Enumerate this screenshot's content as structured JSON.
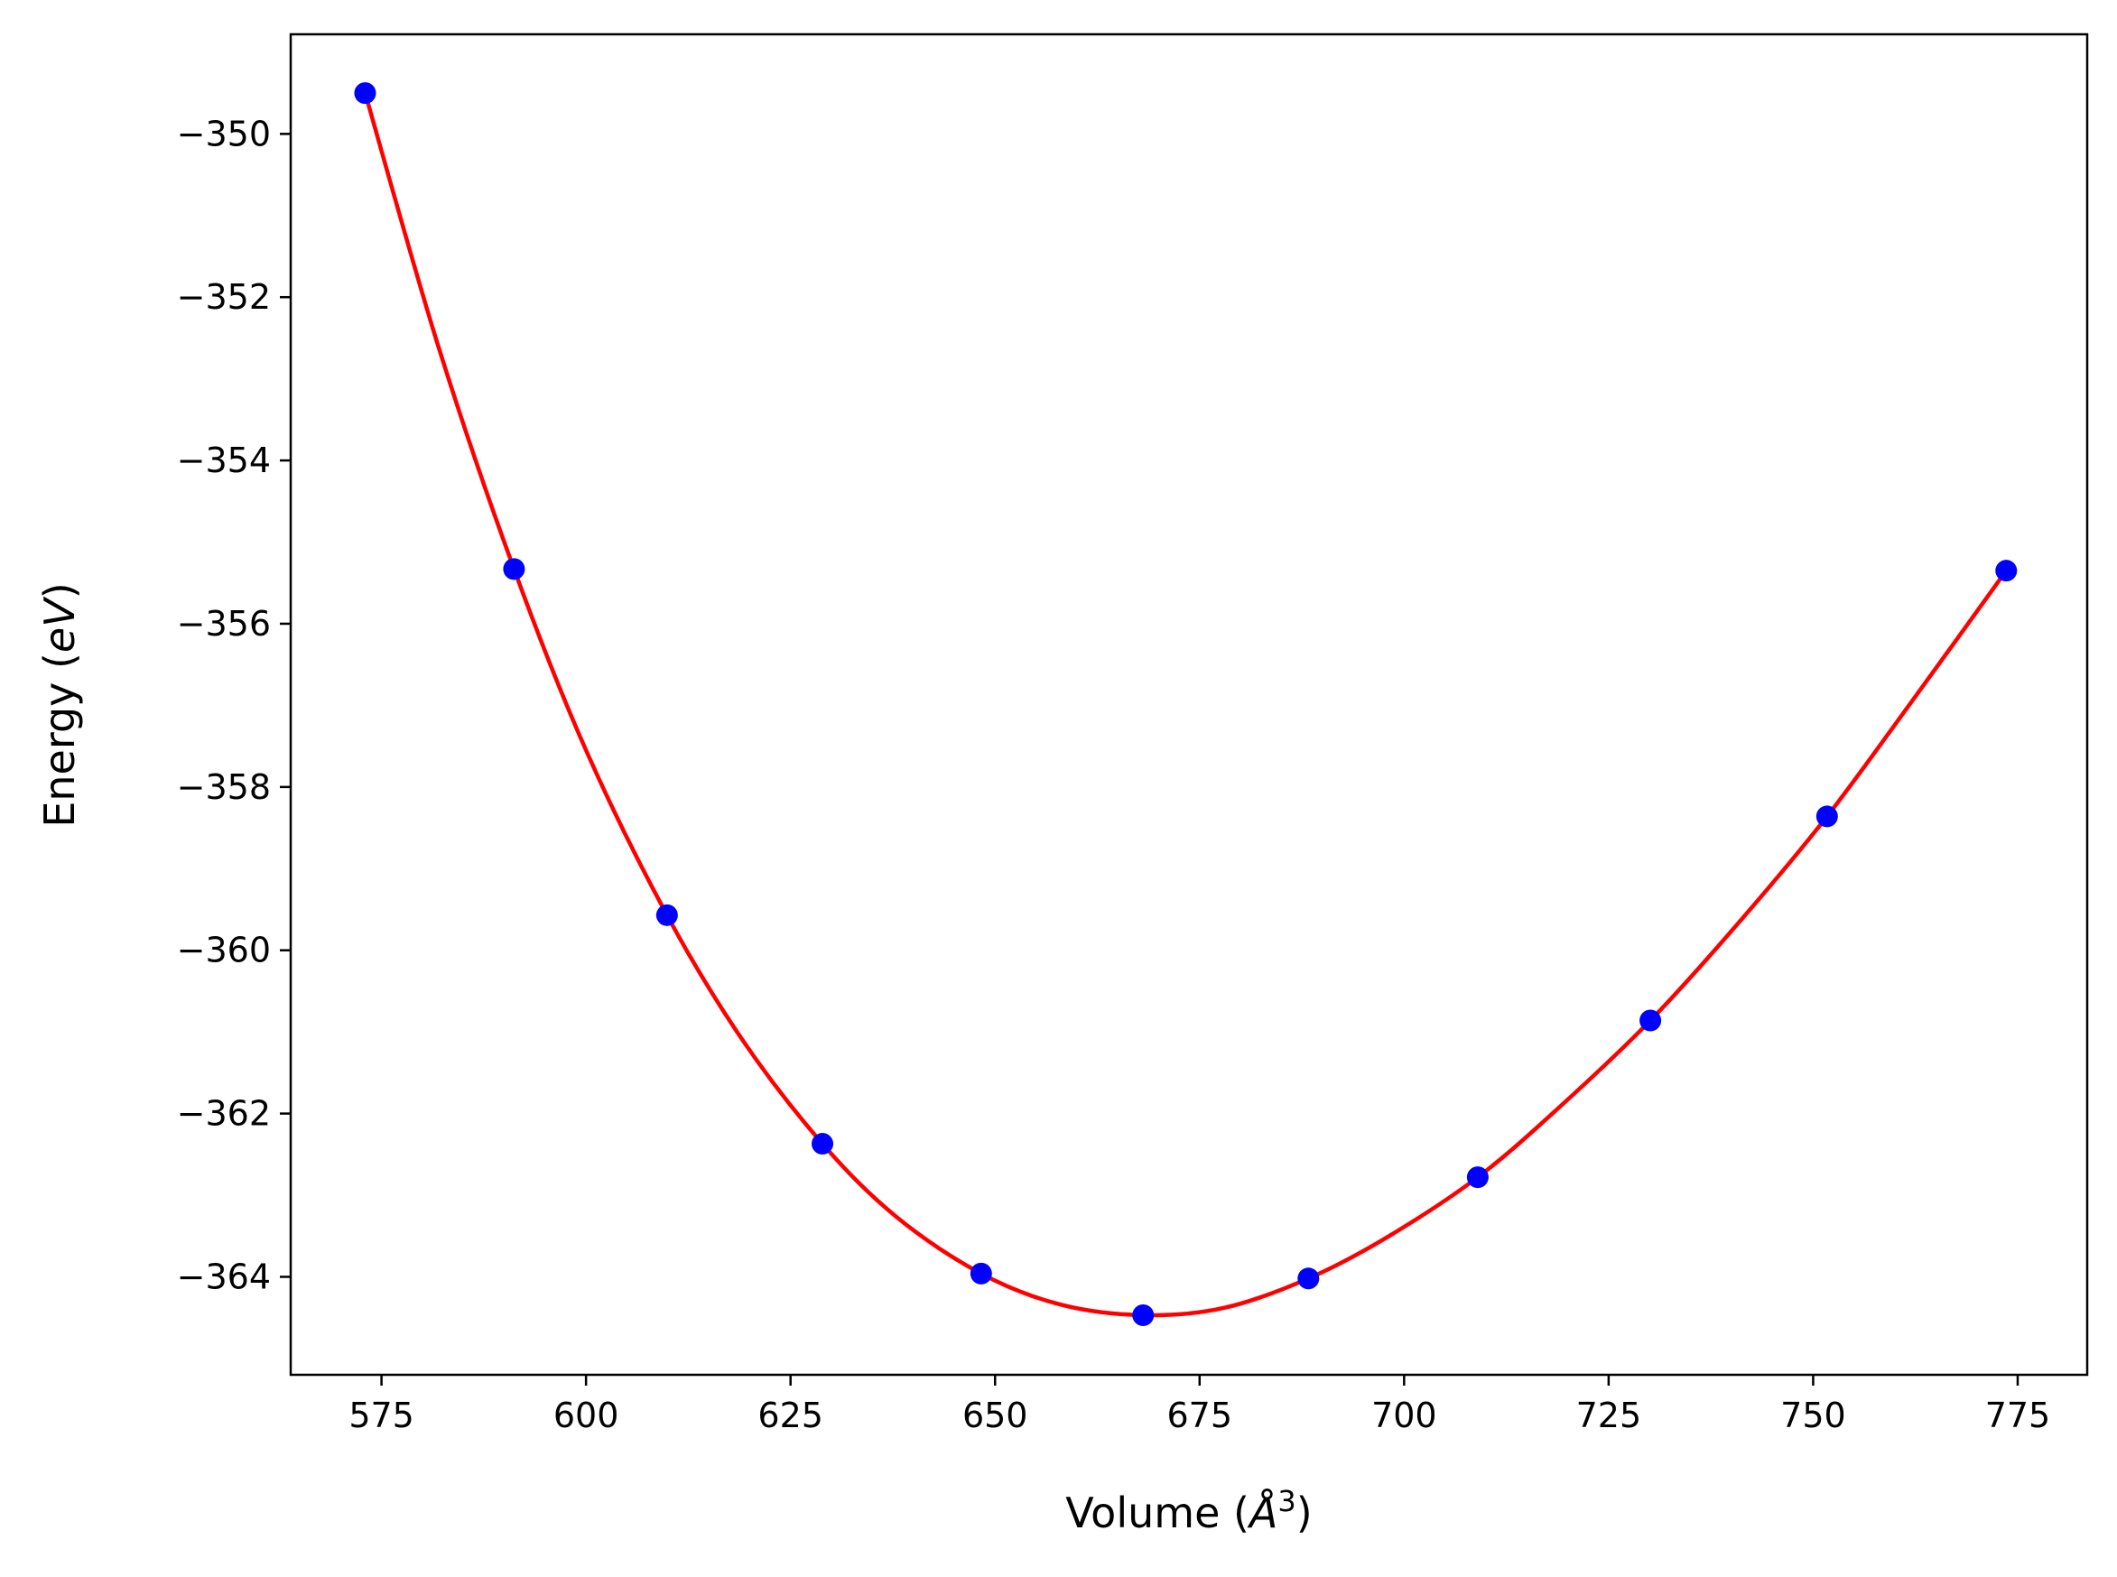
{
  "chart_data": {
    "type": "scatter",
    "xlabel_main": "Volume (",
    "xlabel_symbol": "Å",
    "xlabel_sup": "3",
    "xlabel_close": ")",
    "ylabel_main": "Energy (",
    "ylabel_italic": "eV",
    "ylabel_close": ")",
    "xlim": [
      563.9,
      783.5
    ],
    "ylim": [
      -365.2,
      -348.78
    ],
    "xticks": [
      575,
      600,
      625,
      650,
      675,
      700,
      725,
      750,
      775
    ],
    "xtick_labels": [
      "575",
      "600",
      "625",
      "650",
      "675",
      "700",
      "725",
      "750",
      "775"
    ],
    "yticks": [
      -350,
      -352,
      -354,
      -356,
      -358,
      -360,
      -362,
      -364
    ],
    "ytick_labels": [
      "−350",
      "−352",
      "−354",
      "−356",
      "−358",
      "−360",
      "−362",
      "−364"
    ],
    "grid": false,
    "legend": "none",
    "series": [
      {
        "kind": "points",
        "color": "#0000ff",
        "x": [
          573.0,
          591.2,
          609.9,
          628.9,
          648.3,
          668.1,
          688.3,
          709.0,
          730.1,
          751.7,
          773.6
        ],
        "y": [
          -349.5,
          -355.33,
          -359.57,
          -362.37,
          -363.96,
          -364.47,
          -364.02,
          -362.78,
          -360.86,
          -358.36,
          -355.35
        ]
      },
      {
        "kind": "fit-curve",
        "color": "#ff0000",
        "x": [
          573.0,
          582.0,
          591.2,
          600.0,
          609.9,
          619.0,
          628.9,
          638.0,
          648.3,
          658.0,
          668.1,
          678.0,
          688.3,
          698.0,
          709.0,
          719.0,
          730.1,
          741.0,
          751.7,
          762.0,
          773.6
        ],
        "y": [
          -349.5,
          -352.62,
          -355.33,
          -357.55,
          -359.57,
          -361.08,
          -362.37,
          -363.27,
          -363.96,
          -364.34,
          -364.47,
          -364.38,
          -364.02,
          -363.51,
          -362.78,
          -361.92,
          -360.86,
          -359.65,
          -358.36,
          -356.96,
          -355.35
        ]
      }
    ]
  }
}
